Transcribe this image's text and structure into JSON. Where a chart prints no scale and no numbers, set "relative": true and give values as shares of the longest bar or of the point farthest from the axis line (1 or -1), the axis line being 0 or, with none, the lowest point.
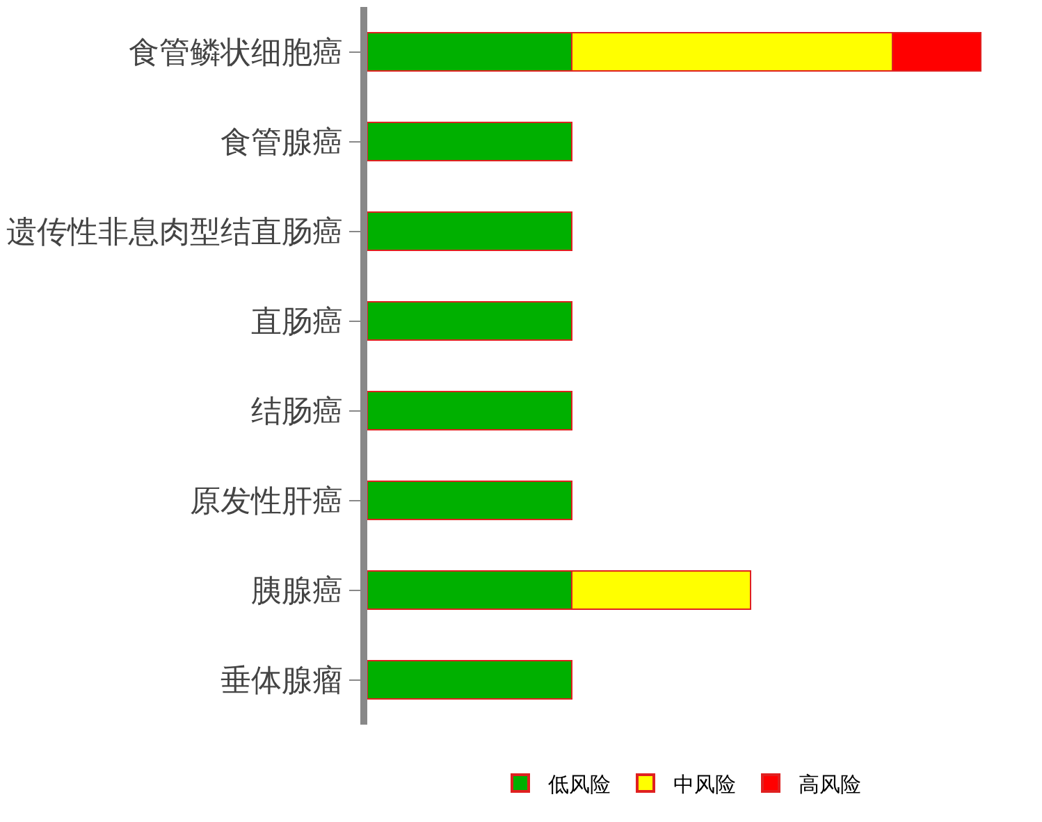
{
  "chart_data": {
    "type": "bar",
    "orientation": "horizontal",
    "stacked": true,
    "relative": true,
    "legend": "bottom",
    "categories": [
      "食管鳞状细胞癌",
      "食管腺癌",
      "遗传性非息肉型结直肠癌",
      "直肠癌",
      "结肠癌",
      "原发性肝癌",
      "胰腺癌",
      "垂体腺瘤"
    ],
    "series": [
      {
        "name": "低风险",
        "color": "#00b000",
        "values": [
          0.333,
          0.333,
          0.333,
          0.333,
          0.333,
          0.333,
          0.333,
          0.333
        ]
      },
      {
        "name": "中风险",
        "color": "#ffff00",
        "values": [
          0.523,
          null,
          null,
          null,
          null,
          null,
          0.291,
          null
        ]
      },
      {
        "name": "高风险",
        "color": "#ff0000",
        "values": [
          0.144,
          null,
          null,
          null,
          null,
          null,
          null,
          null
        ]
      }
    ]
  }
}
